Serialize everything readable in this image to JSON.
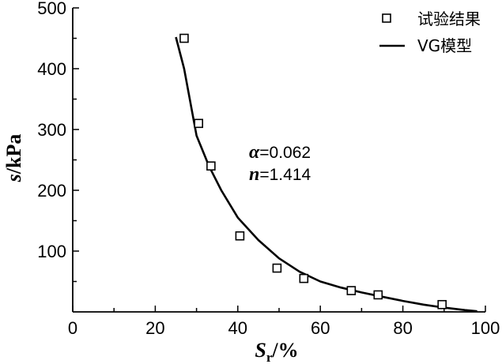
{
  "chart_data": {
    "type": "scatter",
    "xlabel": "S",
    "xlabel_sub": "r",
    "xlabel_unit": "/%",
    "ylabel_var": "s",
    "ylabel_unit": "/kPa",
    "xlim": [
      0,
      100
    ],
    "ylim": [
      0,
      500
    ],
    "xticks": [
      0,
      20,
      40,
      60,
      80,
      100
    ],
    "yticks": [
      100,
      200,
      300,
      400,
      500
    ],
    "grid": false,
    "legend_position": "top-right",
    "series": [
      {
        "name": "试验结果",
        "kind": "scatter",
        "marker": "open-square",
        "x": [
          27,
          30.5,
          33.5,
          40.5,
          49.5,
          56,
          67.5,
          74,
          89.5
        ],
        "y": [
          450,
          310,
          240,
          125,
          72,
          55,
          35,
          28,
          12
        ]
      },
      {
        "name": "VG模型",
        "kind": "line",
        "color": "#000000",
        "x": [
          25,
          27,
          30,
          33,
          36,
          40,
          45,
          50,
          55,
          60,
          65,
          70,
          75,
          80,
          85,
          90,
          95,
          98
        ],
        "y": [
          452,
          400,
          290,
          240,
          200,
          155,
          118,
          88,
          66,
          50,
          40,
          32,
          25,
          18,
          12,
          7,
          3,
          1
        ]
      }
    ],
    "annotations": [
      {
        "var": "α",
        "text": "=0.062"
      },
      {
        "var": "n",
        "text": "=1.414"
      }
    ]
  }
}
